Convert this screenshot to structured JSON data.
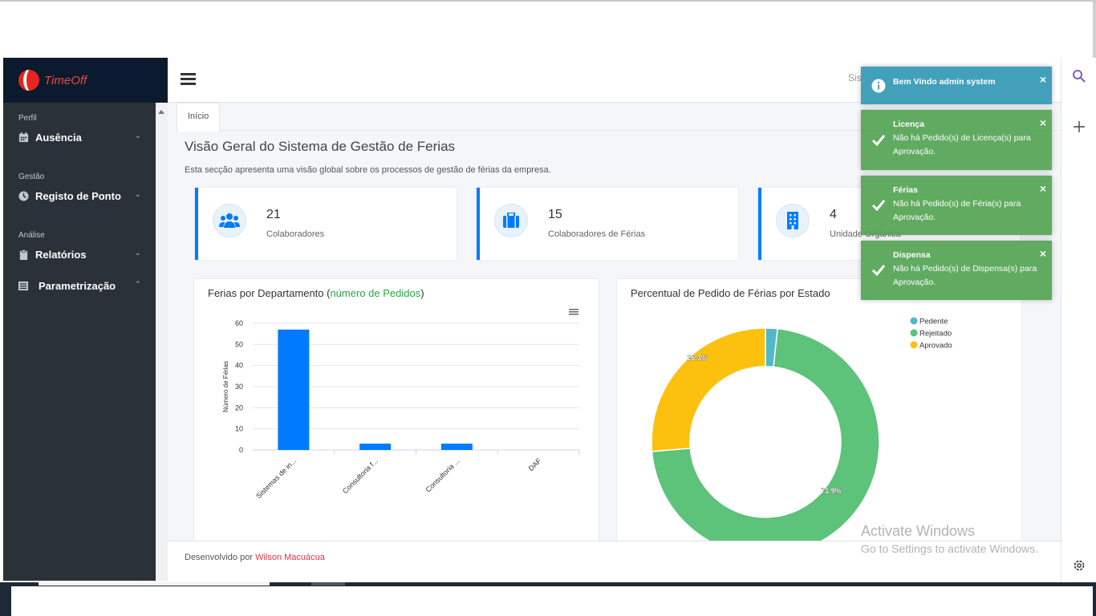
{
  "brand": {
    "name": "TimeOff"
  },
  "sidebar": {
    "sections": [
      {
        "label": "Perfil",
        "items": [
          {
            "label": "Ausência",
            "icon": "calendar-icon"
          }
        ]
      },
      {
        "label": "Gestão",
        "items": [
          {
            "label": "Registo de Ponto",
            "icon": "clock-icon"
          }
        ]
      },
      {
        "label": "Análise",
        "items": [
          {
            "label": "Relatórios",
            "icon": "clipboard-icon"
          },
          {
            "label": "Parametrização",
            "icon": "list-icon"
          }
        ]
      }
    ]
  },
  "header": {
    "partial_text": "Sis"
  },
  "tabs": [
    {
      "label": "Início"
    }
  ],
  "page": {
    "title": "Visão Geral do Sistema de Gestão de Ferias",
    "description": "Esta secção apresenta uma visão global sobre os processos de gestão de férias da empresa."
  },
  "info_boxes": [
    {
      "value": "21",
      "label": "Colaboradores",
      "icon": "users-icon"
    },
    {
      "value": "15",
      "label": "Colaboradores de Férias",
      "icon": "suitcase-icon"
    },
    {
      "value": "4",
      "label": "Unidade Orgânica",
      "icon": "building-icon"
    }
  ],
  "chart_data": [
    {
      "type": "bar",
      "title": "Ferias por Departamento (número de Pedidos)",
      "title_main": "Ferias por Departamento (",
      "title_highlight": "número de Pedidos",
      "title_end": ")",
      "ylabel": "Número de Férias",
      "categories": [
        "Sistemas de in...",
        "Consultoria f...",
        "Consultoria ...",
        "DAF"
      ],
      "values": [
        57,
        3,
        3,
        0
      ],
      "ylim": [
        0,
        60
      ],
      "yticks": [
        "0",
        "10",
        "20",
        "30",
        "40",
        "50",
        "60"
      ],
      "grid": true,
      "color": "#007bff"
    },
    {
      "type": "pie",
      "title": "Percentual de Pedido de Férias por Estado",
      "series": [
        {
          "name": "Pedente",
          "value": 1.7,
          "color": "#4fb9c9"
        },
        {
          "name": "Rejeitado",
          "value": 71.9,
          "color": "#5dc27a"
        },
        {
          "name": "Aprovado",
          "value": 26.3,
          "color": "#fcc10e"
        }
      ],
      "data_labels": [
        "26.3%",
        "71.9%"
      ],
      "legend": "top-right"
    }
  ],
  "footer": {
    "prefix": "Desenvolvido por ",
    "author": "Wilson Macuácua"
  },
  "toasts": [
    {
      "type": "info",
      "title": "Bem Vindo admin system",
      "message": ""
    },
    {
      "type": "success",
      "title": "Licença",
      "message": "Não há Pedido(s) de Licença(s) para Aprovação."
    },
    {
      "type": "success",
      "title": "Férias",
      "message": "Não há Pedido(s) de Féria(s) para Aprovação."
    },
    {
      "type": "success",
      "title": "Dispensa",
      "message": "Não há Pedido(s) de Dispensa(s) para Aprovação."
    }
  ],
  "watermark": {
    "line1": "Activate Windows",
    "line2": "Go to Settings to activate Windows."
  },
  "colors": {
    "primary": "#007bff",
    "sidebar": "#343a40",
    "success": "#51a351",
    "info": "#2f96b4"
  }
}
